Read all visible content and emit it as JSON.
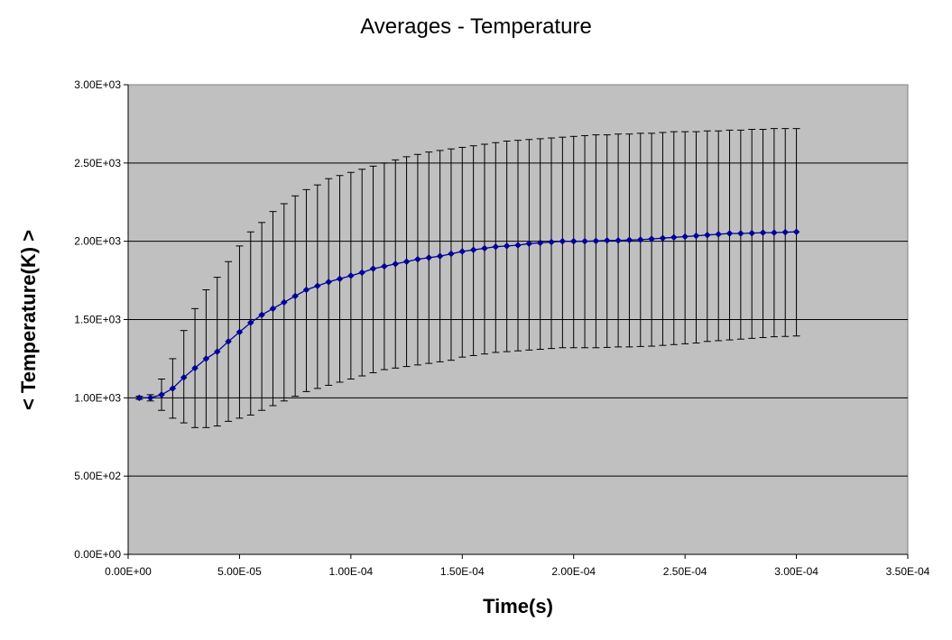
{
  "chart_data": {
    "type": "line",
    "title": "Averages - Temperature",
    "xlabel": "Time(s)",
    "ylabel": "< Temperature(K) >",
    "xlim": [
      0,
      0.00035
    ],
    "ylim": [
      0,
      3000
    ],
    "x_ticks": [
      0,
      5e-05,
      0.0001,
      0.00015,
      0.0002,
      0.00025,
      0.0003,
      0.00035
    ],
    "x_tick_labels": [
      "0.00E+00",
      "5.00E-05",
      "1.00E-04",
      "1.50E-04",
      "2.00E-04",
      "2.50E-04",
      "3.00E-04",
      "3.50E-04"
    ],
    "y_ticks": [
      0,
      500,
      1000,
      1500,
      2000,
      2500,
      3000
    ],
    "y_tick_labels": [
      "0.00E+00",
      "5.00E+02",
      "1.00E+03",
      "1.50E+03",
      "2.00E+03",
      "2.50E+03",
      "3.00E+03"
    ],
    "grid": "horizontal",
    "plot_background": "#c0c0c0",
    "series_color": "#000099",
    "error_bar_color": "#000000",
    "series": [
      {
        "x": [
          5e-06,
          1e-05,
          1.5e-05,
          2e-05,
          2.5e-05,
          3e-05,
          3.5e-05,
          4e-05,
          4.5e-05,
          5e-05,
          5.5e-05,
          6e-05,
          6.5e-05,
          7e-05,
          7.5e-05,
          8e-05,
          8.5e-05,
          9e-05,
          9.5e-05,
          0.0001,
          0.000105,
          0.00011,
          0.000115,
          0.00012,
          0.000125,
          0.00013,
          0.000135,
          0.00014,
          0.000145,
          0.00015,
          0.000155,
          0.00016,
          0.000165,
          0.00017,
          0.000175,
          0.00018,
          0.000185,
          0.00019,
          0.000195,
          0.0002,
          0.000205,
          0.00021,
          0.000215,
          0.00022,
          0.000225,
          0.00023,
          0.000235,
          0.00024,
          0.000245,
          0.00025,
          0.000255,
          0.00026,
          0.000265,
          0.00027,
          0.000275,
          0.00028,
          0.000285,
          0.00029,
          0.000295,
          0.0003
        ],
        "y": [
          1000,
          1000,
          1020,
          1060,
          1130,
          1190,
          1250,
          1295,
          1360,
          1420,
          1480,
          1530,
          1570,
          1610,
          1650,
          1690,
          1715,
          1740,
          1760,
          1780,
          1800,
          1825,
          1840,
          1855,
          1870,
          1885,
          1895,
          1905,
          1920,
          1935,
          1945,
          1955,
          1965,
          1970,
          1975,
          1985,
          1990,
          1995,
          2000,
          2000,
          2000,
          2002,
          2005,
          2005,
          2008,
          2010,
          2015,
          2020,
          2025,
          2030,
          2035,
          2040,
          2045,
          2050,
          2050,
          2052,
          2055,
          2055,
          2058,
          2060
        ],
        "error_upper": [
          1010,
          1020,
          1120,
          1250,
          1430,
          1570,
          1690,
          1770,
          1870,
          1970,
          2060,
          2120,
          2190,
          2240,
          2290,
          2330,
          2360,
          2400,
          2420,
          2440,
          2460,
          2480,
          2500,
          2520,
          2540,
          2555,
          2570,
          2580,
          2590,
          2600,
          2610,
          2620,
          2630,
          2640,
          2645,
          2650,
          2655,
          2660,
          2665,
          2670,
          2675,
          2680,
          2680,
          2685,
          2685,
          2690,
          2690,
          2695,
          2700,
          2700,
          2700,
          2705,
          2705,
          2710,
          2710,
          2715,
          2715,
          2720,
          2720,
          2720
        ],
        "error_lower": [
          990,
          980,
          920,
          870,
          840,
          810,
          810,
          820,
          850,
          870,
          890,
          920,
          950,
          980,
          1010,
          1040,
          1060,
          1080,
          1100,
          1120,
          1140,
          1160,
          1180,
          1190,
          1200,
          1210,
          1220,
          1230,
          1240,
          1260,
          1270,
          1280,
          1290,
          1295,
          1300,
          1305,
          1310,
          1315,
          1320,
          1320,
          1320,
          1320,
          1322,
          1325,
          1325,
          1328,
          1330,
          1335,
          1340,
          1345,
          1350,
          1360,
          1365,
          1370,
          1375,
          1380,
          1385,
          1390,
          1392,
          1395
        ]
      }
    ]
  }
}
